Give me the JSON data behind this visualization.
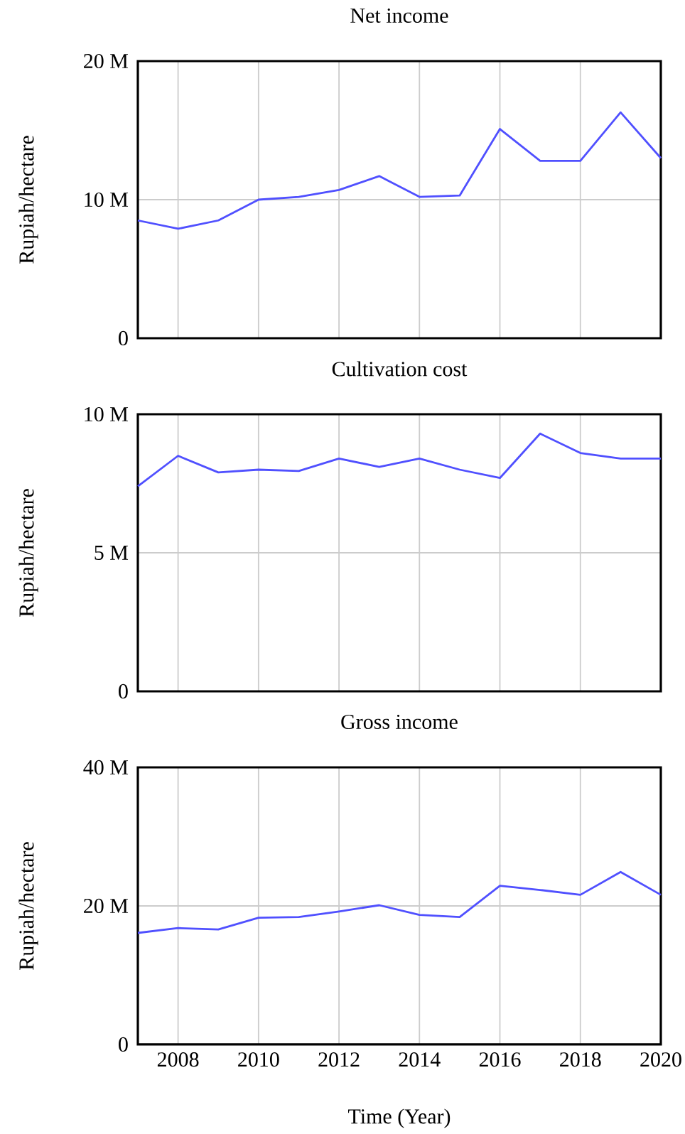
{
  "chart_data": [
    {
      "type": "line",
      "title": "Net income",
      "ylabel": "Rupiah/hectare",
      "x": [
        2007,
        2008,
        2009,
        2010,
        2011,
        2012,
        2013,
        2014,
        2015,
        2016,
        2017,
        2018,
        2019,
        2020
      ],
      "series": [
        {
          "color": "#5050ff",
          "values": [
            8500000,
            7900000,
            8500000,
            10000000,
            10200000,
            10700000,
            11700000,
            10200000,
            10300000,
            15100000,
            12800000,
            12800000,
            16300000,
            13000000
          ]
        }
      ],
      "xlim": [
        2007,
        2020
      ],
      "xticks": [
        2008,
        2010,
        2012,
        2014,
        2016,
        2018,
        2020
      ],
      "ylim": [
        0,
        20000000
      ],
      "yticks": [
        0,
        {
          "value": 10000000,
          "label": "10 M"
        },
        {
          "value": 20000000,
          "label": "20 M"
        }
      ],
      "grid": true,
      "tick_labels": "y"
    },
    {
      "type": "line",
      "title": "Cultivation cost",
      "ylabel": "Rupiah/hectare",
      "x": [
        2007,
        2008,
        2009,
        2010,
        2011,
        2012,
        2013,
        2014,
        2015,
        2016,
        2017,
        2018,
        2019,
        2020
      ],
      "series": [
        {
          "color": "#5050ff",
          "values": [
            7400000,
            8500000,
            7900000,
            8000000,
            7950000,
            8400000,
            8100000,
            8400000,
            8000000,
            7700000,
            9300000,
            8600000,
            8400000,
            8400000
          ]
        }
      ],
      "xlim": [
        2007,
        2020
      ],
      "xticks": [
        2008,
        2010,
        2012,
        2014,
        2016,
        2018,
        2020
      ],
      "ylim": [
        0,
        10000000
      ],
      "yticks": [
        0,
        {
          "value": 5000000,
          "label": "5 M"
        },
        {
          "value": 10000000,
          "label": "10 M"
        }
      ],
      "grid": true,
      "tick_labels": "y"
    },
    {
      "type": "line",
      "title": "Gross income",
      "ylabel": "Rupiah/hectare",
      "xlabel": "Time (Year)",
      "x": [
        2007,
        2008,
        2009,
        2010,
        2011,
        2012,
        2013,
        2014,
        2015,
        2016,
        2017,
        2018,
        2019,
        2020
      ],
      "series": [
        {
          "color": "#5050ff",
          "values": [
            16100000,
            16800000,
            16600000,
            18300000,
            18400000,
            19200000,
            20100000,
            18700000,
            18400000,
            22900000,
            22300000,
            21600000,
            24900000,
            21600000
          ]
        }
      ],
      "xlim": [
        2007,
        2020
      ],
      "xticks": [
        2008,
        2010,
        2012,
        2014,
        2016,
        2018,
        2020
      ],
      "ylim": [
        0,
        40000000
      ],
      "yticks": [
        0,
        {
          "value": 20000000,
          "label": "20 M"
        },
        {
          "value": 40000000,
          "label": "40 M"
        }
      ],
      "grid": true
    }
  ]
}
